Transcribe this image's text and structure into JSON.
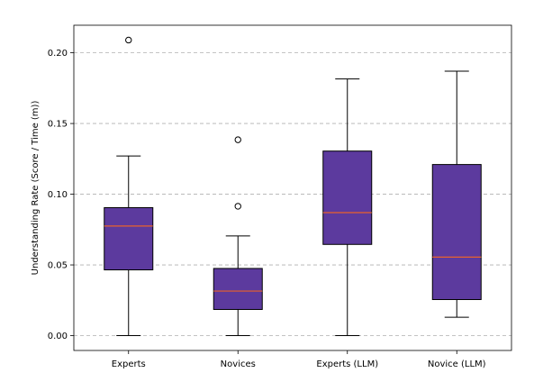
{
  "chart_data": {
    "type": "boxplot",
    "title": "",
    "xlabel": "",
    "ylabel": "Understanding Rate (Score / Time (m))",
    "ylim": [
      -0.0105,
      0.2195
    ],
    "y_ticks": [
      0.0,
      0.05,
      0.1,
      0.15,
      0.2
    ],
    "y_tick_labels": [
      "0.00",
      "0.05",
      "0.10",
      "0.15",
      "0.20"
    ],
    "grid": "horizontal dashed",
    "box_color": "#5c3a9e",
    "median_color": "#e8622c",
    "categories": [
      "Experts",
      "Novices",
      "Experts (LLM)",
      "Novice (LLM)"
    ],
    "boxes": [
      {
        "label": "Experts",
        "whisker_low": 0.0,
        "q1": 0.0465,
        "median": 0.0775,
        "q3": 0.0905,
        "whisker_high": 0.127,
        "outliers": [
          0.209
        ]
      },
      {
        "label": "Novices",
        "whisker_low": 0.0,
        "q1": 0.0185,
        "median": 0.0315,
        "q3": 0.0475,
        "whisker_high": 0.0705,
        "outliers": [
          0.0915,
          0.1385
        ]
      },
      {
        "label": "Experts (LLM)",
        "whisker_low": 0.0,
        "q1": 0.0645,
        "median": 0.087,
        "q3": 0.1305,
        "whisker_high": 0.1815,
        "outliers": []
      },
      {
        "label": "Novice (LLM)",
        "whisker_low": 0.013,
        "q1": 0.0255,
        "median": 0.0555,
        "q3": 0.121,
        "whisker_high": 0.187,
        "outliers": []
      }
    ]
  }
}
